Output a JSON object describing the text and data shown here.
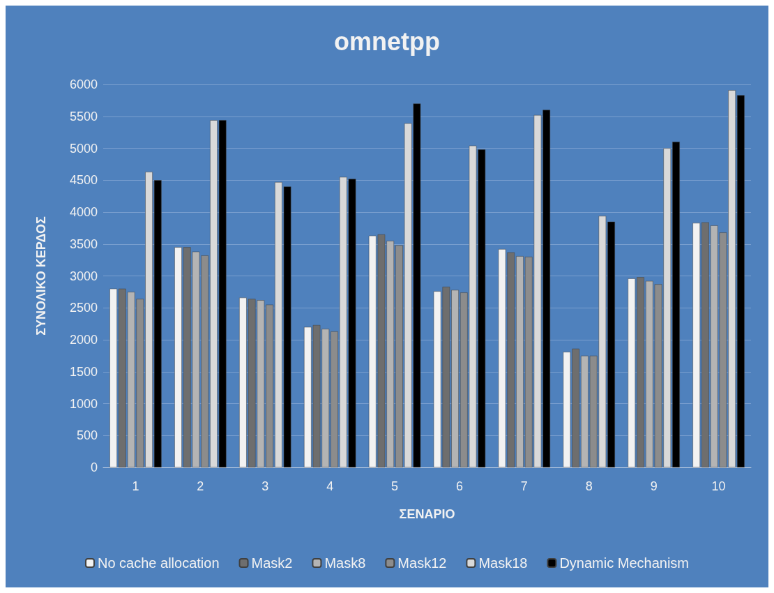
{
  "chart_data": {
    "type": "bar",
    "title": "omnetpp",
    "xlabel": "ΣΕΝΑΡΙΟ",
    "ylabel": "ΣΥΝΟΛΙΚΟ ΚΕΡΔΟΣ",
    "categories": [
      "1",
      "2",
      "3",
      "4",
      "5",
      "6",
      "7",
      "8",
      "9",
      "10"
    ],
    "series": [
      {
        "name": "No cache allocation",
        "color": "#f2f2f2",
        "values": [
          2800,
          3450,
          2660,
          2200,
          3630,
          2760,
          3420,
          1810,
          2960,
          3830
        ]
      },
      {
        "name": "Mask2",
        "color": "#6e6e6e",
        "values": [
          2800,
          3450,
          2640,
          2230,
          3650,
          2830,
          3370,
          1860,
          2980,
          3840
        ]
      },
      {
        "name": "Mask8",
        "color": "#b4b4b4",
        "values": [
          2750,
          3380,
          2620,
          2170,
          3550,
          2780,
          3310,
          1750,
          2920,
          3790
        ]
      },
      {
        "name": "Mask12",
        "color": "#8c8c8c",
        "values": [
          2640,
          3320,
          2550,
          2130,
          3480,
          2740,
          3300,
          1750,
          2870,
          3680
        ]
      },
      {
        "name": "Mask18",
        "color": "#d9d9d9",
        "values": [
          4630,
          5440,
          4470,
          4550,
          5390,
          5040,
          5520,
          3940,
          5000,
          5910
        ]
      },
      {
        "name": "Dynamic Mechanism",
        "color": "#000000",
        "values": [
          4500,
          5440,
          4400,
          4520,
          5700,
          4980,
          5600,
          3850,
          5100,
          5830
        ]
      }
    ],
    "ylim": [
      0,
      6000
    ],
    "yticks": [
      0,
      500,
      1000,
      1500,
      2000,
      2500,
      3000,
      3500,
      4000,
      4500,
      5000,
      5500,
      6000
    ],
    "grid": "y",
    "legend": "bottom"
  }
}
